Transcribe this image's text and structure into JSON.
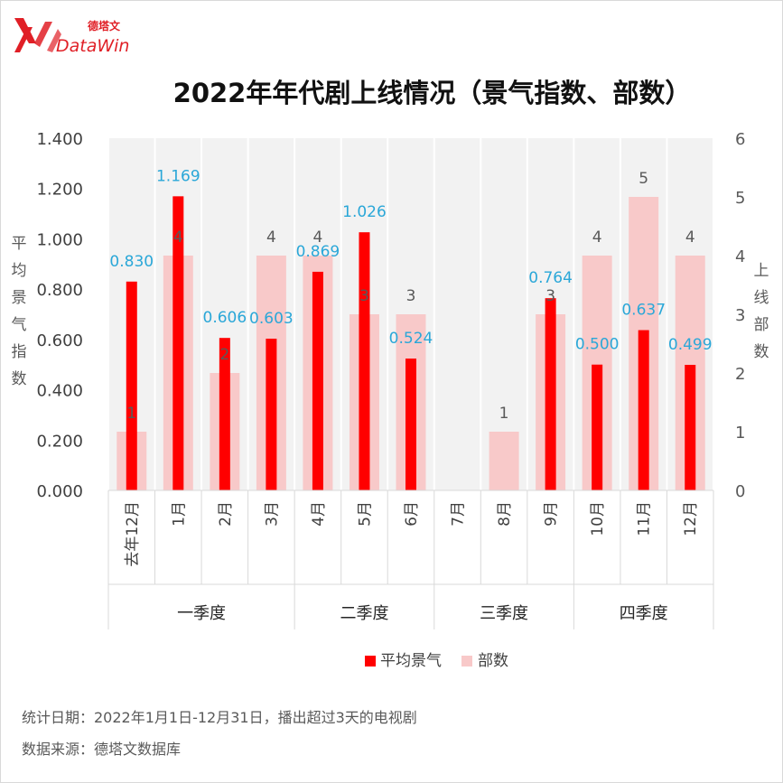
{
  "brand": {
    "name_cn": "德塔文",
    "name_en": "DataWin",
    "colors": {
      "accent": "#e01f26"
    }
  },
  "chart_data": {
    "type": "bar",
    "title": "2022年年代剧上线情况（景气指数、部数）",
    "categories": [
      "去年12月",
      "1月",
      "2月",
      "3月",
      "4月",
      "5月",
      "6月",
      "7月",
      "8月",
      "9月",
      "10月",
      "11月",
      "12月"
    ],
    "quarters": [
      {
        "label": "一季度",
        "span": 4
      },
      {
        "label": "二季度",
        "span": 3
      },
      {
        "label": "三季度",
        "span": 3
      },
      {
        "label": "四季度",
        "span": 3
      }
    ],
    "series": [
      {
        "name": "平均景气",
        "axis": "left",
        "color": "#ff0000",
        "values": [
          0.83,
          1.169,
          0.606,
          0.603,
          0.869,
          1.026,
          0.524,
          null,
          null,
          0.764,
          0.5,
          0.637,
          0.499
        ],
        "labels": [
          "0.830",
          "1.169",
          "0.606",
          "0.603",
          "0.869",
          "1.026",
          "0.524",
          "",
          "",
          "0.764",
          "0.500",
          "0.637",
          "0.499"
        ],
        "label_color": "#2aa7d8"
      },
      {
        "name": "部数",
        "axis": "right",
        "color": "#f8c9c9",
        "values": [
          1,
          4,
          2,
          4,
          4,
          3,
          3,
          0,
          1,
          3,
          4,
          5,
          4
        ],
        "labels": [
          "1",
          "4",
          "2",
          "4",
          "4",
          "3",
          "3",
          "",
          "1",
          "3",
          "4",
          "5",
          "4"
        ],
        "label_color": "#595959"
      }
    ],
    "ylabel_left": "平均景气指数",
    "ylabel_right": "上线部数",
    "ylim_left": [
      0,
      1.4
    ],
    "ylim_right": [
      0,
      6
    ],
    "yticks_left": [
      "0.000",
      "0.200",
      "0.400",
      "0.600",
      "0.800",
      "1.000",
      "1.200",
      "1.400"
    ],
    "yticks_right": [
      "0",
      "1",
      "2",
      "3",
      "4",
      "5",
      "6"
    ],
    "legend_position": "bottom"
  },
  "footer": {
    "line1": "统计日期：2022年1月1日-12月31日，播出超过3天的电视剧",
    "line2": "数据来源：德塔文数据库"
  }
}
